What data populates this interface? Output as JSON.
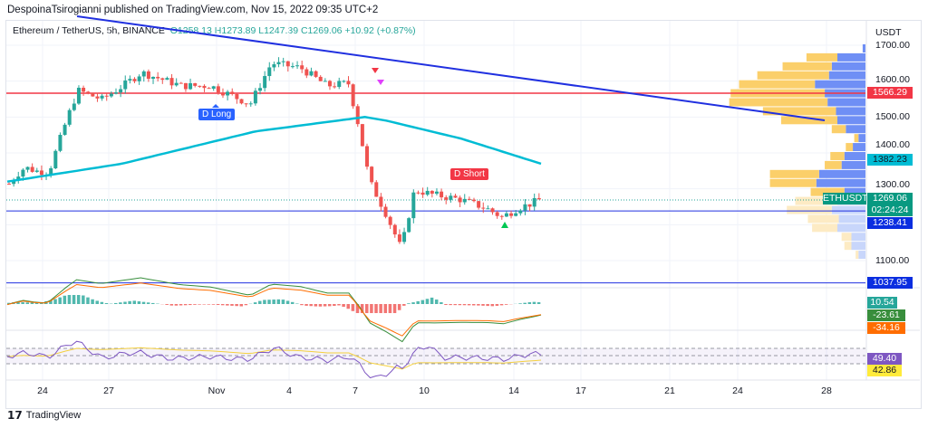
{
  "header": {
    "published": "DespoinaTsirogianni published on TradingView.com, Nov 15, 2022 09:35 UTC+2"
  },
  "legend": {
    "symbol": "Ethereum / TetherUS, 5h, BINANCE",
    "open": "O1258.13",
    "high": "H1273.89",
    "low": "L1247.39",
    "close": "C1269.06",
    "change": "+10.92 (+0.87%)"
  },
  "footer": {
    "brand": "TradingView"
  },
  "price_axis": {
    "currency": "USDT",
    "ticks": [
      "1700.00",
      "1600.00",
      "1500.00",
      "1400.00",
      "1300.00",
      "1100.00"
    ]
  },
  "tags": {
    "red_line": "1566.29",
    "ma": "1382.23",
    "symbol": "ETHUSDT",
    "last": "1269.06",
    "countdown": "02:24:24",
    "support": "1238.41",
    "low_line": "1037.95",
    "macd": "10.54",
    "macd_line": "-23.61",
    "signal": "-34.16",
    "rsi": "49.40",
    "rsi_ma": "42.86"
  },
  "annotations": {
    "long": "D Long",
    "short": "D Short"
  },
  "colors": {
    "up": "#26a69a",
    "down": "#ef5350",
    "ma": "#00bcd4",
    "trend": "#2030e0",
    "red": "#f23645",
    "rsi": "#7e57c2",
    "rsi_ma": "#ffeb3b"
  },
  "chart_data": {
    "type": "candlestick",
    "title": "Ethereum / TetherUS, 5h, BINANCE",
    "x_ticks": [
      "24",
      "27",
      "Nov",
      "4",
      "7",
      "10",
      "14",
      "17",
      "21",
      "24",
      "28"
    ],
    "ylim": [
      1000,
      1720
    ],
    "close_path": [
      [
        0,
        1314
      ],
      [
        0.3,
        1340
      ],
      [
        0.6,
        1360
      ],
      [
        1,
        1350
      ],
      [
        1.5,
        1347
      ],
      [
        2.2,
        1498
      ],
      [
        2.6,
        1574
      ],
      [
        3.5,
        1549
      ],
      [
        4.3,
        1587
      ],
      [
        5,
        1624
      ],
      [
        6.5,
        1587
      ],
      [
        7.6,
        1587
      ],
      [
        9.1,
        1536
      ],
      [
        9.9,
        1650
      ],
      [
        11,
        1637
      ],
      [
        12,
        1587
      ],
      [
        12.8,
        1595
      ],
      [
        13.2,
        1473
      ],
      [
        13.6,
        1322
      ],
      [
        14.2,
        1234
      ],
      [
        14.8,
        1133
      ],
      [
        15.3,
        1297
      ],
      [
        16,
        1284
      ],
      [
        17,
        1271
      ],
      [
        18,
        1246
      ],
      [
        18.6,
        1221
      ],
      [
        19.2,
        1246
      ],
      [
        19.7,
        1259
      ],
      [
        20,
        1269
      ]
    ],
    "ma_path": [
      [
        0,
        1320
      ],
      [
        4.3,
        1370
      ],
      [
        9.3,
        1460
      ],
      [
        13.4,
        1500
      ],
      [
        14.2,
        1490
      ],
      [
        17,
        1440
      ],
      [
        20,
        1370
      ]
    ],
    "volume_profile": [
      [
        1690,
        0,
        2
      ],
      [
        1665,
        22,
        20
      ],
      [
        1640,
        35,
        24
      ],
      [
        1615,
        51,
        26
      ],
      [
        1590,
        54,
        36
      ],
      [
        1565,
        67,
        29
      ],
      [
        1540,
        70,
        27
      ],
      [
        1515,
        52,
        21
      ],
      [
        1490,
        40,
        20
      ],
      [
        1465,
        10,
        14
      ],
      [
        1440,
        3,
        5
      ],
      [
        1415,
        5,
        9
      ],
      [
        1390,
        10,
        15
      ],
      [
        1365,
        12,
        17
      ],
      [
        1340,
        35,
        33
      ],
      [
        1315,
        33,
        35
      ],
      [
        1290,
        24,
        15
      ],
      [
        1265,
        30,
        20
      ],
      [
        1240,
        32,
        24
      ],
      [
        1215,
        22,
        19
      ],
      [
        1190,
        18,
        20
      ],
      [
        1165,
        7,
        10
      ],
      [
        1140,
        5,
        10
      ],
      [
        1115,
        2,
        5
      ]
    ]
  }
}
